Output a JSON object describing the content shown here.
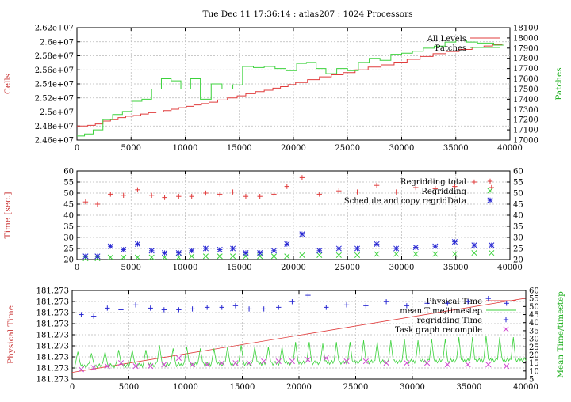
{
  "title": "Tue Dec 11 17:36:14 : atlas207 : 1024 Processors",
  "colors": {
    "red": "#e03c3c",
    "green": "#3cd23c",
    "blue": "#2828d2",
    "magenta": "#d048d0",
    "axis": "#000000",
    "grid": "#b8b8b8",
    "ylabel_red": "#c83232",
    "ylabel_green": "#22b022"
  },
  "chart_data": [
    {
      "type": "line",
      "ylabel": "Cells",
      "y2label": "Patches",
      "xlim": [
        0,
        40000
      ],
      "xticks": [
        0,
        5000,
        10000,
        15000,
        20000,
        25000,
        30000,
        35000,
        40000
      ],
      "ylim": [
        24600000,
        26200000
      ],
      "yticks": [
        "2.46e+07",
        "2.48e+07",
        "2.5e+07",
        "2.52e+07",
        "2.54e+07",
        "2.56e+07",
        "2.58e+07",
        "2.6e+07",
        "2.62e+07"
      ],
      "ytick_values": [
        24600000,
        24800000,
        25000000,
        25200000,
        25400000,
        25600000,
        25800000,
        26000000,
        26200000
      ],
      "y2lim": [
        17000,
        18100
      ],
      "y2ticks": [
        "17000",
        "17100",
        "17200",
        "17300",
        "17400",
        "17500",
        "17600",
        "17700",
        "17800",
        "17900",
        "18000",
        "18100"
      ],
      "y2tick_values": [
        17000,
        17100,
        17200,
        17300,
        17400,
        17500,
        17600,
        17700,
        17800,
        17900,
        18000,
        18100
      ],
      "grid": true,
      "legend": "top-right",
      "series": [
        {
          "name": "All Levels",
          "axis": "y",
          "color": "#e03c3c",
          "step": true,
          "x": [
            0,
            1000,
            1700,
            2400,
            3100,
            3800,
            4500,
            5200,
            5900,
            6600,
            7300,
            8000,
            8700,
            9400,
            10100,
            10800,
            11500,
            12200,
            13000,
            13900,
            14800,
            15600,
            16500,
            17300,
            18100,
            18800,
            19500,
            20200,
            21300,
            22400,
            23500,
            24600,
            25700,
            26900,
            28100,
            29300,
            30500,
            31700,
            32900,
            34100,
            35300,
            36500,
            37600,
            38400
          ],
          "values": [
            24800000,
            24810000,
            24830000,
            24870000,
            24890000,
            24920000,
            24940000,
            24950000,
            24970000,
            24990000,
            25000000,
            25020000,
            25040000,
            25060000,
            25080000,
            25100000,
            25120000,
            25140000,
            25170000,
            25200000,
            25230000,
            25260000,
            25290000,
            25310000,
            25340000,
            25360000,
            25390000,
            25420000,
            25460000,
            25500000,
            25530000,
            25560000,
            25600000,
            25640000,
            25670000,
            25710000,
            25750000,
            25790000,
            25830000,
            25860000,
            25890000,
            25920000,
            25940000,
            25960000
          ]
        },
        {
          "name": "Patches",
          "axis": "y2",
          "color": "#3cd23c",
          "step": true,
          "x": [
            0,
            700,
            1500,
            2400,
            3300,
            4200,
            5100,
            6000,
            6900,
            7800,
            8700,
            9600,
            10500,
            11400,
            12400,
            13400,
            14400,
            15300,
            16300,
            17300,
            18300,
            19300,
            20300,
            21200,
            22100,
            23000,
            24000,
            25000,
            26000,
            27000,
            28000,
            29000,
            30000,
            31000,
            32000,
            33000,
            34000,
            35000,
            36000,
            37000,
            38500
          ],
          "values": [
            17040,
            17060,
            17100,
            17200,
            17250,
            17280,
            17380,
            17400,
            17500,
            17600,
            17580,
            17500,
            17600,
            17400,
            17550,
            17500,
            17540,
            17720,
            17710,
            17720,
            17700,
            17680,
            17750,
            17760,
            17700,
            17650,
            17700,
            17680,
            17760,
            17800,
            17780,
            17840,
            17850,
            17870,
            17900,
            17920,
            17960,
            17980,
            17960,
            17950,
            17930
          ]
        }
      ]
    },
    {
      "type": "scatter",
      "ylabel": "Time [sec.]",
      "xlim": [
        0,
        40000
      ],
      "xticks": [
        0,
        5000,
        10000,
        15000,
        20000,
        25000,
        30000,
        35000,
        40000
      ],
      "ylim": [
        20,
        60
      ],
      "yticks": [
        20,
        25,
        30,
        35,
        40,
        45,
        50,
        55,
        60
      ],
      "y2lim": [
        20,
        60
      ],
      "y2ticks": [
        20,
        25,
        30,
        35,
        40,
        45,
        50,
        55,
        60
      ],
      "grid": true,
      "legend": "top-right",
      "series": [
        {
          "name": "Regridding total",
          "color": "#e03c3c",
          "marker": "plus",
          "x": [
            800,
            1900,
            3100,
            4300,
            5600,
            6900,
            8100,
            9400,
            10600,
            11900,
            13200,
            14400,
            15600,
            16900,
            18200,
            19400,
            20800,
            22400,
            24200,
            25900,
            27700,
            29500,
            31300,
            33100,
            34900,
            36700,
            38300
          ],
          "values": [
            46,
            45,
            49.5,
            49,
            51.5,
            49,
            48,
            48.5,
            48.5,
            50,
            49.5,
            50.5,
            48.5,
            48.5,
            49.5,
            53,
            57,
            49.5,
            51,
            50.5,
            53.5,
            50.5,
            52.5,
            52,
            53,
            55,
            52.5
          ]
        },
        {
          "name": "Regridding",
          "color": "#3cd23c",
          "marker": "x",
          "x": [
            800,
            1900,
            3100,
            4300,
            5600,
            6900,
            8100,
            9400,
            10600,
            11900,
            13200,
            14400,
            15600,
            16900,
            18200,
            19400,
            20800,
            22400,
            24200,
            25900,
            27700,
            29500,
            31300,
            33100,
            34900,
            36700,
            38300
          ],
          "values": [
            20.5,
            20.5,
            21,
            21,
            21,
            21,
            21,
            21,
            21.5,
            21.5,
            21.5,
            21.5,
            21.5,
            21.5,
            21.5,
            21.5,
            22,
            22,
            22,
            22,
            22.5,
            22.5,
            22.5,
            22.5,
            22.5,
            23,
            23
          ]
        },
        {
          "name": "Schedule and copy regridData",
          "color": "#2828d2",
          "marker": "star",
          "x": [
            800,
            1900,
            3100,
            4300,
            5600,
            6900,
            8100,
            9400,
            10600,
            11900,
            13200,
            14400,
            15600,
            16900,
            18200,
            19400,
            20800,
            22400,
            24200,
            25900,
            27700,
            29500,
            31300,
            33100,
            34900,
            36700,
            38300
          ],
          "values": [
            21.5,
            21.5,
            26,
            24.5,
            27,
            24,
            23,
            23,
            24,
            25,
            24.5,
            25,
            23,
            23,
            24,
            27,
            31.5,
            24,
            25,
            25,
            27,
            25,
            25.5,
            26,
            28,
            26.5,
            26.5
          ]
        }
      ]
    },
    {
      "type": "line",
      "ylabel": "Physical Time",
      "y2label": "Mean Time/timestep",
      "xlim": [
        0,
        40000
      ],
      "xticks": [
        0,
        5000,
        10000,
        15000,
        20000,
        25000,
        30000,
        35000,
        40000
      ],
      "yticks": [
        "181.273",
        "181.273",
        "181.273",
        "181.273",
        "181.273",
        "181.273",
        "181.273",
        "181.273",
        "181.273"
      ],
      "ytick_values": [
        0,
        1,
        2,
        3,
        4,
        5,
        6,
        7,
        8
      ],
      "ylim": [
        0,
        8
      ],
      "y2lim": [
        5,
        60
      ],
      "y2ticks": [
        5,
        10,
        15,
        20,
        25,
        30,
        35,
        40,
        45,
        50,
        55,
        60
      ],
      "grid": true,
      "legend": "top-right",
      "series": [
        {
          "name": "Physical Time",
          "axis": "y",
          "color": "#e03c3c",
          "line": true,
          "x": [
            0,
            40000
          ],
          "values": [
            0.6,
            7.3
          ]
        },
        {
          "name": "mean Time/timestep",
          "axis": "y2",
          "color": "#3cd23c",
          "line": true,
          "peaks_x": [
            500,
            1700,
            2900,
            4100,
            5300,
            6500,
            7700,
            8900,
            10100,
            11300,
            12500,
            13700,
            14900,
            16100,
            17300,
            18500,
            19700,
            20900,
            22100,
            23300,
            24500,
            25700,
            26900,
            28100,
            29300,
            30500,
            31700,
            32900,
            34100,
            35300,
            36500,
            37700,
            38900
          ],
          "peaks": [
            22,
            21,
            22,
            23,
            23,
            23,
            26,
            24,
            25,
            24,
            24,
            25,
            26,
            25,
            25,
            25,
            28,
            28,
            27,
            28,
            28,
            29,
            28,
            29,
            30,
            29,
            30,
            30,
            31,
            31,
            32,
            31,
            31
          ],
          "base": 13
        },
        {
          "name": "regridding Time",
          "axis": "y2",
          "color": "#2828d2",
          "marker": "plus",
          "x": [
            800,
            1900,
            3100,
            4300,
            5600,
            6900,
            8100,
            9400,
            10600,
            11900,
            13200,
            14400,
            15600,
            16900,
            18200,
            19400,
            20800,
            22400,
            24200,
            25900,
            27700,
            29500,
            31300,
            33100,
            34900,
            36700,
            38300
          ],
          "values": [
            45,
            44,
            49,
            48,
            51,
            49,
            48,
            48,
            48.5,
            49.5,
            49.5,
            50.5,
            48.5,
            48.5,
            49.5,
            53,
            57,
            49.5,
            51,
            50.5,
            53,
            50.5,
            52,
            52,
            53,
            55,
            52
          ]
        },
        {
          "name": "Task graph recompile",
          "axis": "y2",
          "color": "#d048d0",
          "marker": "x",
          "x": [
            800,
            1900,
            3100,
            4300,
            5600,
            6900,
            8100,
            9400,
            10600,
            11900,
            13200,
            14400,
            15600,
            16900,
            18200,
            19400,
            20800,
            22400,
            24200,
            25900,
            27700,
            29500,
            31300,
            33100,
            34900,
            36700,
            38300
          ],
          "values": [
            11,
            12,
            13,
            15,
            13,
            13,
            14,
            18,
            14,
            14,
            15,
            15,
            15,
            16,
            16,
            16,
            17,
            18,
            16,
            16,
            15,
            15,
            15,
            14,
            14,
            14,
            13
          ]
        }
      ]
    }
  ]
}
